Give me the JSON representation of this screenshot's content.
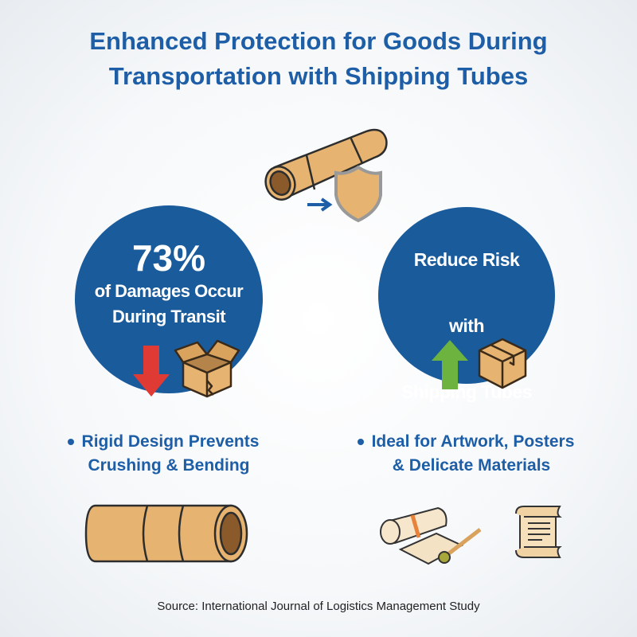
{
  "title": {
    "line1": "Enhanced Protection for Goods During",
    "line2": "Transportation with Shipping Tubes"
  },
  "left_circle": {
    "stat": "73%",
    "line1": "of Damages Occur",
    "line2": "During Transit",
    "arrow_color": "#e03a35"
  },
  "right_circle": {
    "line1": "Reduce Risk",
    "line2": "with",
    "line3": "Shipping Tubes",
    "arrow_color": "#6db33f"
  },
  "bullets": [
    {
      "line1": "Rigid Design Prevents",
      "line2": "Crushing & Bending"
    },
    {
      "line1": "Ideal for Artwork, Posters",
      "line2": "& Delicate Materials"
    }
  ],
  "source": "Source: International Journal of Logistics Management Study",
  "colors": {
    "primary": "#1a5b9c",
    "tube": "#e6b370"
  }
}
